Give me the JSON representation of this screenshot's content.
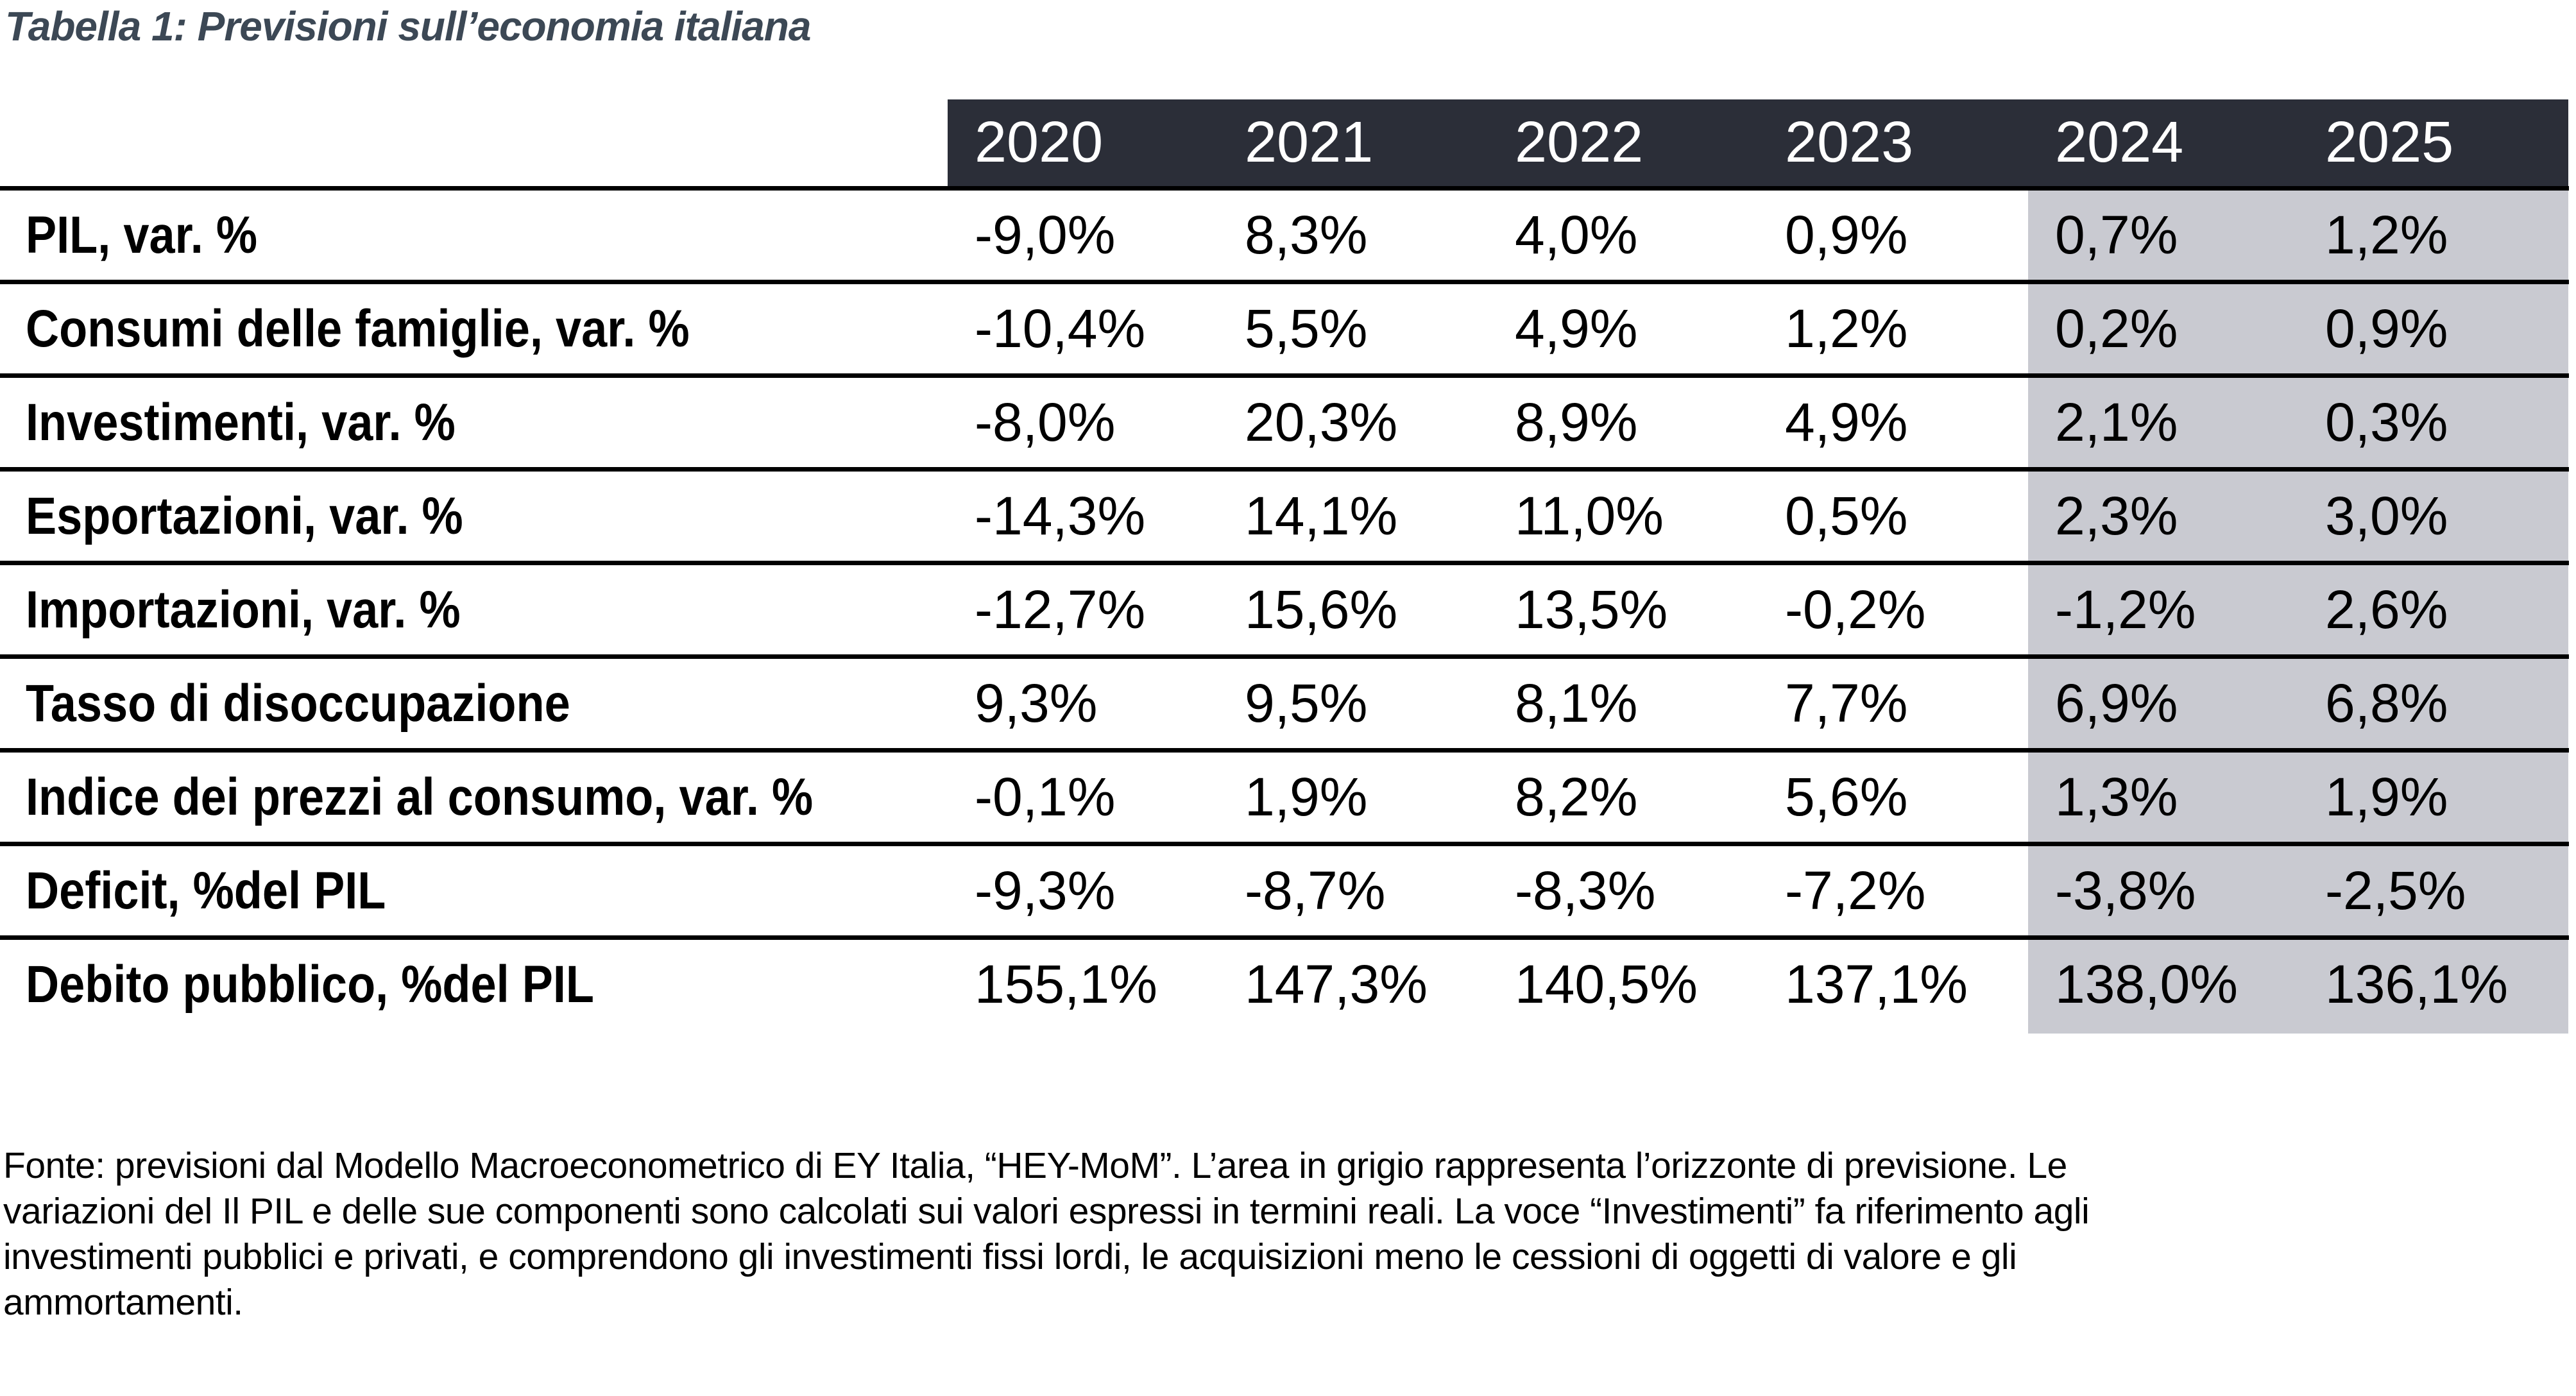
{
  "title": "Tabella 1: Previsioni sull’economia italiana",
  "table": {
    "year_columns": [
      "2020",
      "2021",
      "2022",
      "2023",
      "2024",
      "2025"
    ],
    "forecast_columns": [
      "2024",
      "2025"
    ],
    "rows": [
      {
        "label": "PIL, var. %",
        "values": [
          "-9,0%",
          "8,3%",
          "4,0%",
          "0,9%",
          "0,7%",
          "1,2%"
        ]
      },
      {
        "label": "Consumi delle famiglie, var. %",
        "values": [
          "-10,4%",
          "5,5%",
          "4,9%",
          "1,2%",
          "0,2%",
          "0,9%"
        ]
      },
      {
        "label": "Investimenti, var. %",
        "values": [
          "-8,0%",
          "20,3%",
          "8,9%",
          "4,9%",
          "2,1%",
          "0,3%"
        ]
      },
      {
        "label": "Esportazioni, var. %",
        "values": [
          "-14,3%",
          "14,1%",
          "11,0%",
          "0,5%",
          "2,3%",
          "3,0%"
        ]
      },
      {
        "label": "Importazioni, var. %",
        "values": [
          "-12,7%",
          "15,6%",
          "13,5%",
          "-0,2%",
          "-1,2%",
          "2,6%"
        ]
      },
      {
        "label": "Tasso di disoccupazione",
        "values": [
          "9,3%",
          "9,5%",
          "8,1%",
          "7,7%",
          "6,9%",
          "6,8%"
        ]
      },
      {
        "label": "Indice dei prezzi al consumo, var. %",
        "values": [
          "-0,1%",
          "1,9%",
          "8,2%",
          "5,6%",
          "1,3%",
          "1,9%"
        ]
      },
      {
        "label": "Deficit, %del PIL",
        "values": [
          "-9,3%",
          "-8,7%",
          "-8,3%",
          "-7,2%",
          "-3,8%",
          "-2,5%"
        ]
      },
      {
        "label": "Debito pubblico, %del PIL",
        "values": [
          "155,1%",
          "147,3%",
          "140,5%",
          "137,1%",
          "138,0%",
          "136,1%"
        ]
      }
    ]
  },
  "footnote": {
    "lines": [
      "Fonte: previsioni dal Modello Macroeconometrico di EY Italia, “HEY-MoM”. L’area in grigio rappresenta l’orizzonte di previsione. Le",
      "variazioni del Il PIL e delle sue componenti sono calcolati sui valori espressi in termini reali. La voce “Investimenti” fa riferimento agli",
      "investimenti pubblici e privati, e comprendono gli investimenti fissi lordi, le acquisizioni meno le cessioni di oggetti di valore e gli",
      "ammortamenti."
    ]
  },
  "colors": {
    "header_bg": "#2b2e38",
    "header_text": "#ffffff",
    "forecast_bg": "#c9cad1",
    "title_text": "#3c4855",
    "body_text": "#000000",
    "row_border": "#000000"
  }
}
